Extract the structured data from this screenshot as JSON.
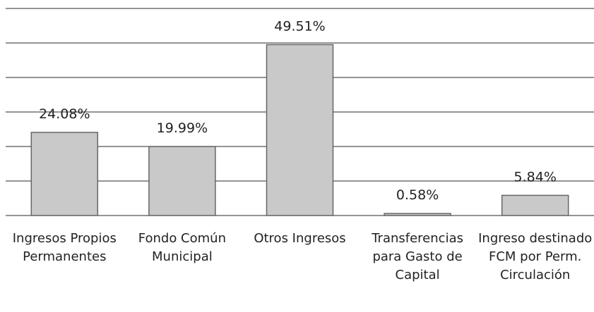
{
  "chart_data": {
    "type": "bar",
    "categories": [
      "Ingresos Propios Permanentes",
      "Fondo Común Municipal",
      "Otros Ingresos",
      "Transferencias para Gasto de Capital",
      "Ingreso destinado FCM por Perm. Circulación"
    ],
    "values": [
      24.08,
      19.99,
      49.51,
      0.58,
      5.84
    ],
    "value_labels": [
      "24.08%",
      "19.99%",
      "49.51%",
      "0.58%",
      "5.84%"
    ],
    "color": "#c9c9c9",
    "ylim": [
      0,
      60
    ],
    "yticks": [
      0,
      10,
      20,
      30,
      40,
      50,
      60
    ],
    "grid": true
  }
}
